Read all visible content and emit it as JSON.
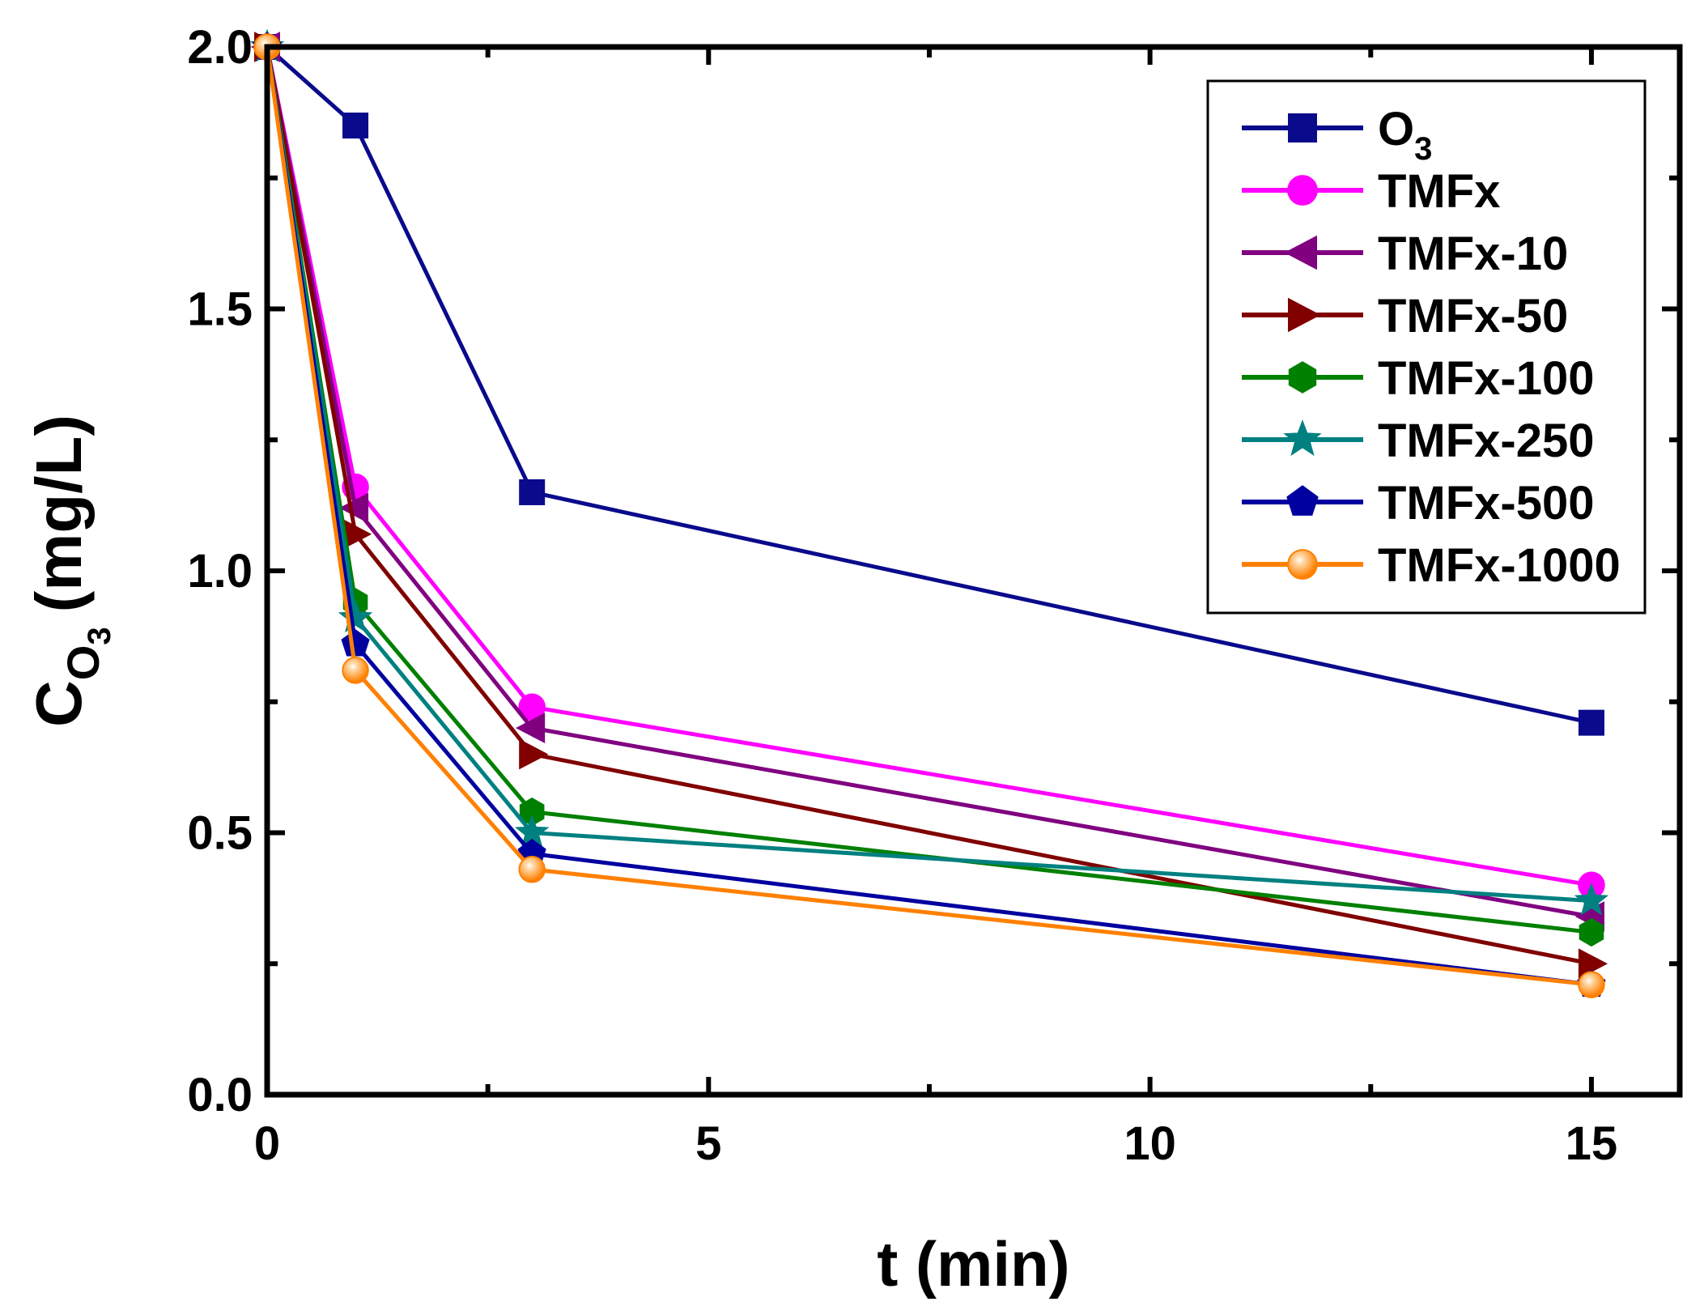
{
  "chart_data": {
    "type": "line",
    "xlabel": "t (min)",
    "ylabel": {
      "main": "C",
      "sub": "O",
      "subsub": "3",
      "unit": "(mg/L)"
    },
    "xlim": [
      0,
      16
    ],
    "ylim": [
      0,
      2.0
    ],
    "x_ticks": [
      0,
      5,
      10,
      15
    ],
    "x_tick_labels": [
      "0",
      "5",
      "10",
      "15"
    ],
    "y_ticks": [
      0,
      0.5,
      1.0,
      1.5,
      2.0
    ],
    "y_tick_labels": [
      "0.0",
      "0.5",
      "1.0",
      "1.5",
      "2.0"
    ],
    "legend_position": "top-right",
    "x": [
      0,
      1,
      3,
      15
    ],
    "series": [
      {
        "name": "O",
        "name_sub": "3",
        "marker": "square",
        "color": "#0a0a8c",
        "values": [
          2.0,
          1.85,
          1.15,
          0.71
        ]
      },
      {
        "name": "TMFx",
        "marker": "circle",
        "color": "#ff00ff",
        "values": [
          2.0,
          1.16,
          0.74,
          0.4
        ]
      },
      {
        "name": "TMFx-10",
        "marker": "triangle-left",
        "color": "#800080",
        "values": [
          2.0,
          1.12,
          0.7,
          0.34
        ]
      },
      {
        "name": "TMFx-50",
        "marker": "triangle-right",
        "color": "#800000",
        "values": [
          2.0,
          1.07,
          0.65,
          0.25
        ]
      },
      {
        "name": "TMFx-100",
        "marker": "hexagon",
        "color": "#008000",
        "values": [
          2.0,
          0.94,
          0.54,
          0.31
        ]
      },
      {
        "name": "TMFx-250",
        "marker": "star",
        "color": "#008080",
        "values": [
          2.0,
          0.91,
          0.5,
          0.37
        ]
      },
      {
        "name": "TMFx-500",
        "marker": "pentagon",
        "color": "#0000a0",
        "values": [
          2.0,
          0.86,
          0.46,
          0.21
        ]
      },
      {
        "name": "TMFx-1000",
        "marker": "sphere",
        "color": "#ff8000",
        "values": [
          2.0,
          0.81,
          0.43,
          0.21
        ]
      }
    ]
  }
}
